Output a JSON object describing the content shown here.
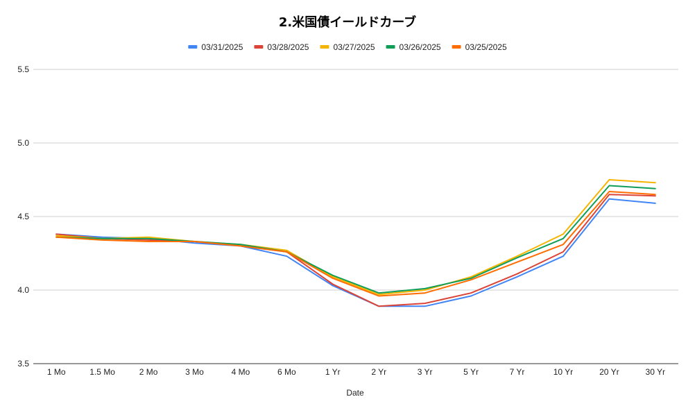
{
  "chart_data": {
    "type": "line",
    "title": "2.米国債イールドカーブ",
    "xlabel": "Date",
    "ylabel": "",
    "ylim": [
      3.5,
      5.5
    ],
    "yticks": [
      "3.5",
      "4.0",
      "4.5",
      "5.0",
      "5.5"
    ],
    "grid": true,
    "legend_position": "top",
    "categories": [
      "1 Mo",
      "1.5 Mo",
      "2 Mo",
      "3 Mo",
      "4 Mo",
      "6 Mo",
      "1 Yr",
      "2 Yr",
      "3 Yr",
      "5 Yr",
      "7 Yr",
      "10 Yr",
      "20 Yr",
      "30 Yr"
    ],
    "series": [
      {
        "name": "03/31/2025",
        "color": "#4285f4",
        "values": [
          4.38,
          4.36,
          4.35,
          4.32,
          4.3,
          4.23,
          4.03,
          3.89,
          3.89,
          3.96,
          4.09,
          4.23,
          4.62,
          4.59
        ]
      },
      {
        "name": "03/28/2025",
        "color": "#db4437",
        "values": [
          4.38,
          4.35,
          4.34,
          4.33,
          4.3,
          4.26,
          4.04,
          3.89,
          3.91,
          3.98,
          4.11,
          4.26,
          4.65,
          4.64
        ]
      },
      {
        "name": "03/27/2025",
        "color": "#f4b400",
        "values": [
          4.37,
          4.35,
          4.36,
          4.33,
          4.31,
          4.27,
          4.09,
          3.97,
          4.0,
          4.09,
          4.23,
          4.38,
          4.75,
          4.73
        ]
      },
      {
        "name": "03/26/2025",
        "color": "#0f9d58",
        "values": [
          4.36,
          4.35,
          4.35,
          4.33,
          4.31,
          4.26,
          4.1,
          3.98,
          4.01,
          4.08,
          4.22,
          4.35,
          4.71,
          4.69
        ]
      },
      {
        "name": "03/25/2025",
        "color": "#ff6d01",
        "values": [
          4.36,
          4.34,
          4.33,
          4.33,
          4.3,
          4.26,
          4.08,
          3.96,
          3.98,
          4.07,
          4.19,
          4.31,
          4.67,
          4.65
        ]
      }
    ]
  }
}
